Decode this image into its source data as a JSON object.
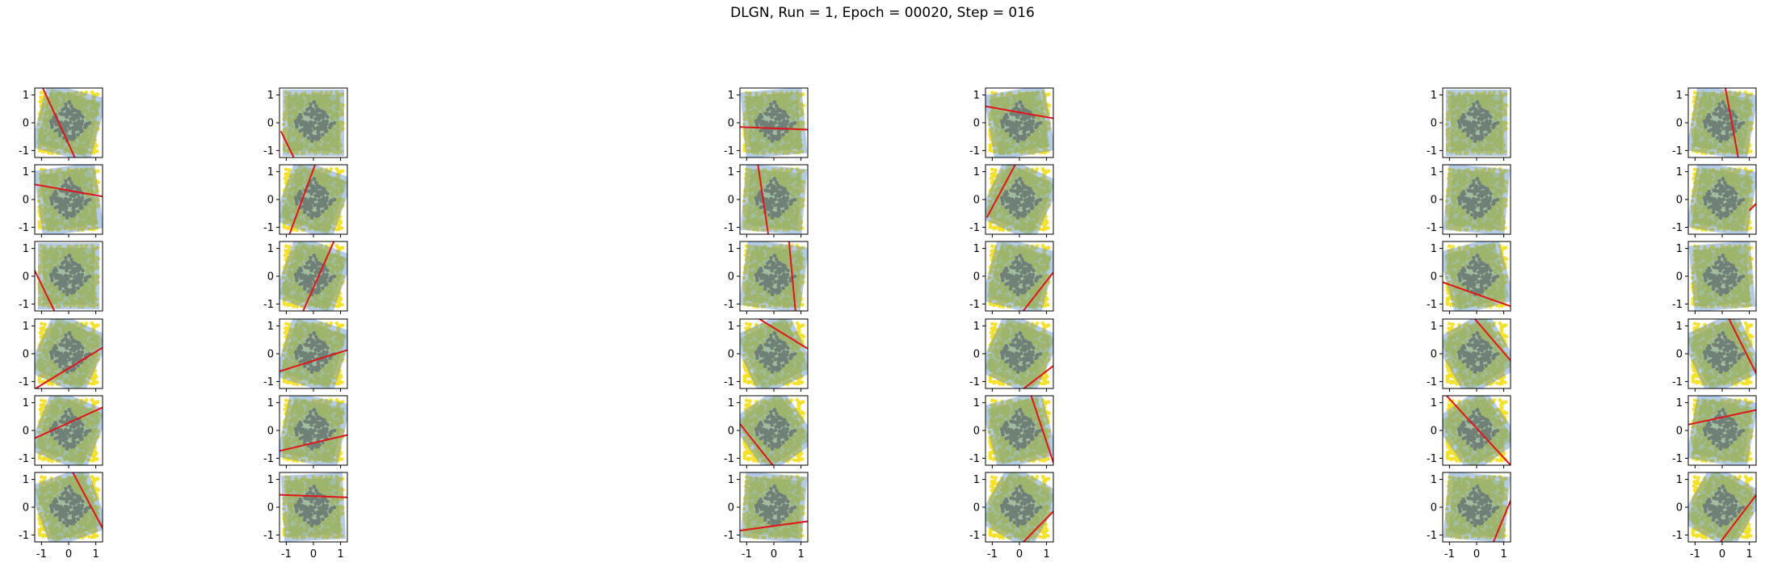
{
  "figure": {
    "title": "DLGN, Run = 1, Epoch = 00020, Step = 016"
  },
  "chart_data": {
    "type": "scatter",
    "title": "DLGN, Run = 1, Epoch = 00020, Step = 016",
    "layout": {
      "rows": 6,
      "cols": 6
    },
    "description": "Small-multiples grid: each panel shows a 2D dataset (dark purple diamond class |x|+|y|<0.75 inside yellow class) with a shaded gating half-plane and a red decision line.",
    "xlim": [
      -1.25,
      1.25
    ],
    "ylim": [
      -1.25,
      1.25
    ],
    "xticks": [
      "-1",
      "0",
      "1"
    ],
    "yticks": [
      "-1",
      "0",
      "1"
    ],
    "grid": false,
    "colors": {
      "class_inside": "#3b0f5c",
      "class_outside": "#f5e12a",
      "overlay_blue": "#5b8fc7",
      "overlay_green": "#8fae64",
      "line": "#e0141a",
      "axes": "#000000"
    },
    "panels": [
      {
        "row": 0,
        "col": 0,
        "line": [
          [
            -1.0,
            1.35
          ],
          [
            0.25,
            -1.3
          ]
        ],
        "shade": "right",
        "rot": 15
      },
      {
        "row": 0,
        "col": 1,
        "line": [
          [
            -1.2,
            -0.3
          ],
          [
            -0.7,
            -1.3
          ]
        ],
        "shade": "right",
        "rot": 0
      },
      {
        "row": 0,
        "col": 2,
        "line": [
          [
            -1.3,
            -0.15
          ],
          [
            1.3,
            -0.25
          ]
        ],
        "shade": "above",
        "rot": -5
      },
      {
        "row": 0,
        "col": 3,
        "line": [
          [
            -1.3,
            0.6
          ],
          [
            1.3,
            0.15
          ]
        ],
        "shade": "above",
        "rot": -10
      },
      {
        "row": 0,
        "col": 4,
        "line": null,
        "shade": "all",
        "rot": 0
      },
      {
        "row": 0,
        "col": 5,
        "line": [
          [
            0.1,
            1.35
          ],
          [
            0.6,
            -1.3
          ]
        ],
        "shade": "left",
        "rot": 10
      },
      {
        "row": 1,
        "col": 0,
        "line": [
          [
            -1.3,
            0.55
          ],
          [
            1.3,
            0.1
          ]
        ],
        "shade": "below",
        "rot": -8
      },
      {
        "row": 1,
        "col": 1,
        "line": [
          [
            -0.9,
            -1.3
          ],
          [
            0.1,
            1.35
          ]
        ],
        "shade": "left",
        "rot": 20
      },
      {
        "row": 1,
        "col": 2,
        "line": [
          [
            -0.6,
            1.35
          ],
          [
            -0.2,
            -1.3
          ]
        ],
        "shade": "left",
        "rot": 5
      },
      {
        "row": 1,
        "col": 3,
        "line": [
          [
            -1.2,
            -0.65
          ],
          [
            -0.1,
            1.35
          ]
        ],
        "shade": "left",
        "rot": 25
      },
      {
        "row": 1,
        "col": 4,
        "line": null,
        "shade": "all",
        "rot": 5
      },
      {
        "row": 1,
        "col": 5,
        "line": [
          [
            1.0,
            -0.4
          ],
          [
            1.3,
            -0.1
          ]
        ],
        "shade": "left",
        "rot": 10
      },
      {
        "row": 2,
        "col": 0,
        "line": [
          [
            -1.3,
            0.3
          ],
          [
            -0.5,
            -1.3
          ]
        ],
        "shade": "left",
        "rot": 0
      },
      {
        "row": 2,
        "col": 1,
        "line": [
          [
            -0.4,
            -1.3
          ],
          [
            0.8,
            1.35
          ]
        ],
        "shade": "left",
        "rot": 20
      },
      {
        "row": 2,
        "col": 2,
        "line": [
          [
            0.55,
            1.35
          ],
          [
            0.8,
            -1.3
          ]
        ],
        "shade": "right",
        "rot": 8
      },
      {
        "row": 2,
        "col": 3,
        "line": [
          [
            0.1,
            -1.3
          ],
          [
            1.3,
            0.2
          ]
        ],
        "shade": "above",
        "rot": 15
      },
      {
        "row": 2,
        "col": 4,
        "line": [
          [
            -1.3,
            -0.2
          ],
          [
            1.3,
            -1.1
          ]
        ],
        "shade": "below",
        "rot": -15
      },
      {
        "row": 2,
        "col": 5,
        "line": null,
        "shade": "all",
        "rot": -5
      },
      {
        "row": 3,
        "col": 0,
        "line": [
          [
            -1.3,
            -1.3
          ],
          [
            1.3,
            0.25
          ]
        ],
        "shade": "above",
        "rot": 25
      },
      {
        "row": 3,
        "col": 1,
        "line": [
          [
            -1.3,
            -0.65
          ],
          [
            1.3,
            0.15
          ]
        ],
        "shade": "above",
        "rot": 18
      },
      {
        "row": 3,
        "col": 2,
        "line": [
          [
            -0.7,
            1.35
          ],
          [
            1.3,
            0.15
          ]
        ],
        "shade": "right",
        "rot": -25
      },
      {
        "row": 3,
        "col": 3,
        "line": [
          [
            0.1,
            -1.3
          ],
          [
            1.3,
            -0.4
          ]
        ],
        "shade": "above",
        "rot": 25
      },
      {
        "row": 3,
        "col": 4,
        "line": [
          [
            -0.15,
            1.35
          ],
          [
            1.3,
            -0.3
          ]
        ],
        "shade": "right",
        "rot": -30
      },
      {
        "row": 3,
        "col": 5,
        "line": [
          [
            0.2,
            1.35
          ],
          [
            1.3,
            -0.8
          ]
        ],
        "shade": "right",
        "rot": -25
      },
      {
        "row": 4,
        "col": 0,
        "line": [
          [
            -1.3,
            -0.3
          ],
          [
            1.3,
            0.85
          ]
        ],
        "shade": "above",
        "rot": 22
      },
      {
        "row": 4,
        "col": 1,
        "line": [
          [
            -1.3,
            -0.75
          ],
          [
            1.3,
            -0.15
          ]
        ],
        "shade": "below",
        "rot": 12
      },
      {
        "row": 4,
        "col": 2,
        "line": [
          [
            -1.3,
            0.3
          ],
          [
            0.0,
            -1.3
          ]
        ],
        "shade": "left",
        "rot": -35
      },
      {
        "row": 4,
        "col": 3,
        "line": [
          [
            0.4,
            1.35
          ],
          [
            1.3,
            -1.3
          ]
        ],
        "shade": "right",
        "rot": -15
      },
      {
        "row": 4,
        "col": 4,
        "line": [
          [
            -1.2,
            1.35
          ],
          [
            1.3,
            -1.3
          ]
        ],
        "shade": "right",
        "rot": -35
      },
      {
        "row": 4,
        "col": 5,
        "line": [
          [
            -1.3,
            0.2
          ],
          [
            1.3,
            0.75
          ]
        ],
        "shade": "above",
        "rot": 10
      },
      {
        "row": 5,
        "col": 0,
        "line": [
          [
            0.1,
            1.35
          ],
          [
            1.3,
            -0.85
          ]
        ],
        "shade": "left",
        "rot": -20
      },
      {
        "row": 5,
        "col": 1,
        "line": [
          [
            -1.3,
            0.45
          ],
          [
            1.3,
            0.35
          ]
        ],
        "shade": "below",
        "rot": -3
      },
      {
        "row": 5,
        "col": 2,
        "line": [
          [
            -1.3,
            -0.85
          ],
          [
            1.3,
            -0.5
          ]
        ],
        "shade": "above",
        "rot": 5
      },
      {
        "row": 5,
        "col": 3,
        "line": [
          [
            0.1,
            -1.3
          ],
          [
            1.3,
            -0.1
          ]
        ],
        "shade": "above",
        "rot": 30
      },
      {
        "row": 5,
        "col": 4,
        "line": [
          [
            0.6,
            -1.3
          ],
          [
            1.3,
            0.35
          ]
        ],
        "shade": "left",
        "rot": 5
      },
      {
        "row": 5,
        "col": 5,
        "line": [
          [
            -0.1,
            -1.3
          ],
          [
            1.3,
            0.5
          ]
        ],
        "shade": "left",
        "rot": 30
      }
    ]
  }
}
